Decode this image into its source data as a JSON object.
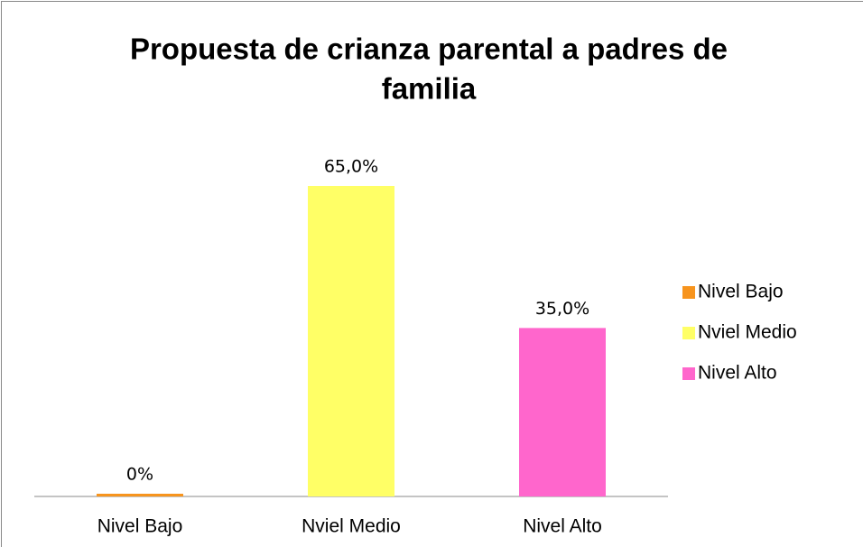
{
  "chart_data": {
    "type": "bar",
    "title": [
      "Propuesta de crianza parental a padres de",
      "familia"
    ],
    "categories": [
      "Nivel Bajo",
      "Nviel Medio",
      "Nivel Alto"
    ],
    "values": [
      0,
      65,
      35
    ],
    "value_labels": [
      "0%",
      "65,0%",
      "35,0%"
    ],
    "colors": [
      "#f7941d",
      "#ffff66",
      "#ff66cc"
    ],
    "legend": "right"
  }
}
